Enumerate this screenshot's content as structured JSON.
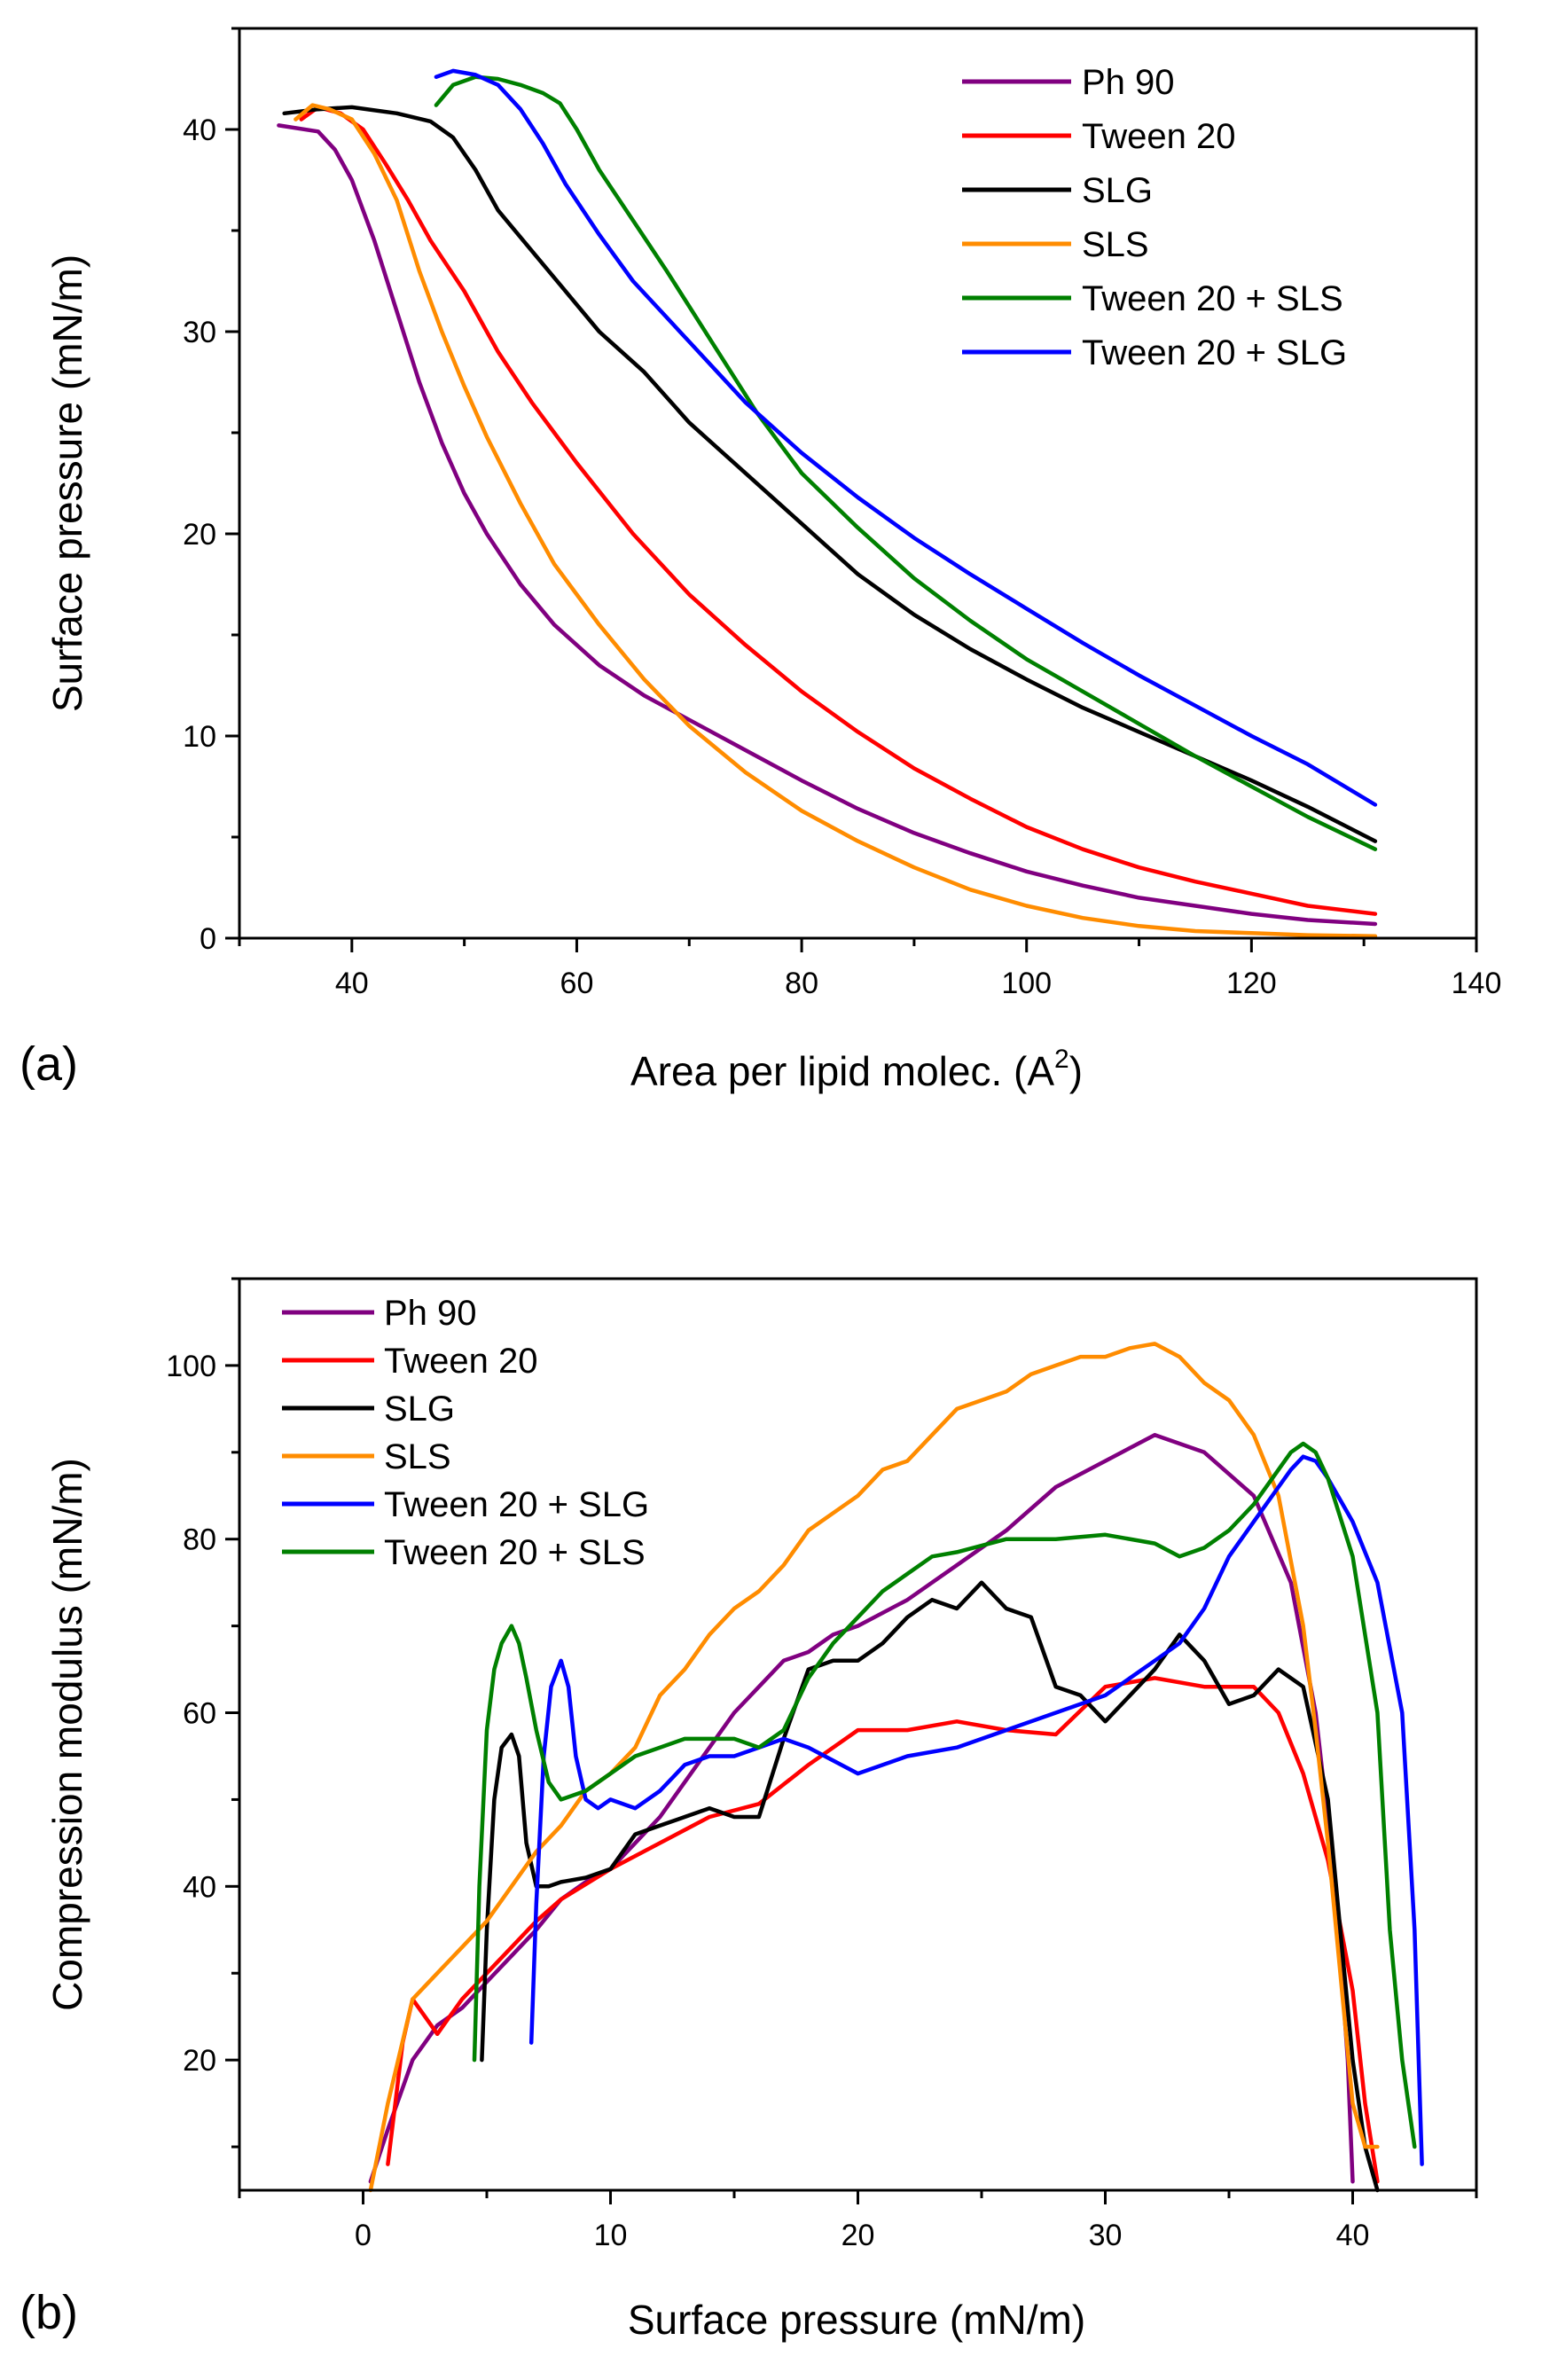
{
  "colors": {
    "ph90": "#800080",
    "tween20": "#ff0000",
    "slg": "#000000",
    "sls": "#ff8c00",
    "tween20_sls": "#008000",
    "tween20_slg": "#0000ff"
  },
  "chart_data": [
    {
      "id": "a",
      "type": "line",
      "panel_label": "(a)",
      "xlabel": "Area per lipid molec. (A",
      "xlabel_sup": "2",
      "xlabel_end": ")",
      "ylabel": "Surface pressure (mN/m)",
      "xlim": [
        30,
        140
      ],
      "ylim": [
        0,
        45
      ],
      "xticks": [
        40,
        60,
        80,
        100,
        120,
        140
      ],
      "yticks": [
        0,
        10,
        20,
        30,
        40
      ],
      "legend_position": "top-right",
      "series": [
        {
          "name": "Ph 90",
          "color_key": "ph90",
          "x": [
            33.5,
            37,
            38.5,
            40,
            42,
            44,
            46,
            48,
            50,
            52,
            55,
            58,
            62,
            66,
            70,
            75,
            80,
            85,
            90,
            95,
            100,
            105,
            110,
            115,
            120,
            125,
            131
          ],
          "y": [
            40.2,
            39.9,
            39,
            37.5,
            34.5,
            31,
            27.5,
            24.5,
            22,
            20,
            17.5,
            15.5,
            13.5,
            12,
            10.8,
            9.3,
            7.8,
            6.4,
            5.2,
            4.2,
            3.3,
            2.6,
            2,
            1.6,
            1.2,
            0.9,
            0.7
          ]
        },
        {
          "name": "Tween 20",
          "color_key": "tween20",
          "x": [
            35.5,
            37,
            39,
            41,
            43,
            45,
            47,
            50,
            53,
            56,
            60,
            65,
            70,
            75,
            80,
            85,
            90,
            95,
            100,
            105,
            110,
            115,
            120,
            125,
            131
          ],
          "y": [
            40.5,
            41.1,
            40.8,
            40,
            38.3,
            36.5,
            34.5,
            32,
            29,
            26.5,
            23.5,
            20,
            17,
            14.5,
            12.2,
            10.2,
            8.4,
            6.9,
            5.5,
            4.4,
            3.5,
            2.8,
            2.2,
            1.6,
            1.2
          ]
        },
        {
          "name": "SLG",
          "color_key": "slg",
          "x": [
            34,
            37,
            40,
            44,
            47,
            49,
            51,
            53,
            56,
            59,
            62,
            66,
            70,
            75,
            80,
            85,
            90,
            95,
            100,
            105,
            110,
            115,
            120,
            125,
            131
          ],
          "y": [
            40.8,
            41,
            41.1,
            40.8,
            40.4,
            39.6,
            38,
            36,
            34,
            32,
            30,
            28,
            25.5,
            23,
            20.5,
            18,
            16,
            14.3,
            12.8,
            11.4,
            10.2,
            9,
            7.8,
            6.5,
            4.8
          ]
        },
        {
          "name": "SLS",
          "color_key": "sls",
          "x": [
            35,
            36.5,
            38,
            40,
            42,
            44,
            46,
            48,
            50,
            52,
            55,
            58,
            62,
            66,
            70,
            75,
            80,
            85,
            90,
            95,
            100,
            105,
            110,
            115,
            120,
            125,
            131
          ],
          "y": [
            40.5,
            41.2,
            41,
            40.5,
            38.8,
            36.5,
            33,
            30,
            27.3,
            24.8,
            21.5,
            18.5,
            15.5,
            12.8,
            10.5,
            8.2,
            6.3,
            4.8,
            3.5,
            2.4,
            1.6,
            1,
            0.6,
            0.35,
            0.25,
            0.15,
            0.1
          ]
        },
        {
          "name": "Tween 20 + SLS",
          "color_key": "tween20_sls",
          "x": [
            47.5,
            49,
            51,
            53,
            55,
            57,
            58.5,
            60,
            62,
            65,
            68,
            72,
            76,
            80,
            85,
            90,
            95,
            100,
            105,
            110,
            115,
            120,
            125,
            131
          ],
          "y": [
            41.2,
            42.2,
            42.6,
            42.5,
            42.2,
            41.8,
            41.3,
            40,
            38,
            35.5,
            33,
            29.5,
            26,
            23,
            20.3,
            17.8,
            15.7,
            13.8,
            12.2,
            10.6,
            9,
            7.5,
            6,
            4.4
          ]
        },
        {
          "name": "Tween 20 + SLG",
          "color_key": "tween20_slg",
          "x": [
            47.5,
            49,
            51,
            53,
            55,
            57,
            59,
            62,
            65,
            70,
            75,
            80,
            85,
            90,
            95,
            100,
            105,
            110,
            115,
            120,
            125,
            131
          ],
          "y": [
            42.6,
            42.9,
            42.7,
            42.2,
            41,
            39.3,
            37.3,
            34.8,
            32.5,
            29.5,
            26.5,
            24,
            21.8,
            19.8,
            18,
            16.3,
            14.6,
            13,
            11.5,
            10,
            8.6,
            6.6
          ]
        }
      ]
    },
    {
      "id": "b",
      "type": "line",
      "panel_label": "(b)",
      "xlabel": "Surface pressure (mN/m)",
      "ylabel": "Compression modulus (mN/m)",
      "xlim": [
        -5,
        45
      ],
      "ylim": [
        5,
        110
      ],
      "xticks": [
        0,
        10,
        20,
        30,
        40
      ],
      "yticks": [
        20,
        40,
        60,
        80,
        100
      ],
      "legend_position": "top-left",
      "series": [
        {
          "name": "Ph 90",
          "color_key": "ph90",
          "x": [
            0.3,
            1,
            1.5,
            2,
            2.5,
            3,
            4,
            5,
            6,
            7,
            8,
            9,
            10,
            11,
            12,
            13,
            14,
            15,
            16,
            17,
            18,
            19,
            20,
            22,
            24,
            26,
            28,
            30,
            32,
            34,
            36,
            37.5,
            38.5,
            39.3,
            39.8,
            40
          ],
          "y": [
            6,
            12,
            16,
            20,
            22,
            24,
            26,
            29,
            32,
            35,
            38.5,
            40.5,
            42,
            45,
            48,
            52,
            56,
            60,
            63,
            66,
            67,
            69,
            70,
            73,
            77,
            81,
            86,
            89,
            92,
            90,
            85,
            75,
            60,
            40,
            20,
            6
          ]
        },
        {
          "name": "Tween 20",
          "color_key": "tween20",
          "x": [
            1,
            1.3,
            1.6,
            2,
            2.5,
            3,
            3.5,
            4,
            5,
            6,
            7,
            8,
            10,
            12,
            14,
            16,
            18,
            20,
            22,
            24,
            26,
            28,
            30,
            32,
            34,
            36,
            37,
            38,
            39,
            40,
            40.5,
            41
          ],
          "y": [
            8,
            15,
            22,
            27,
            25,
            23,
            25,
            27,
            30,
            33,
            36,
            38.5,
            42,
            45,
            48,
            49.5,
            54,
            58,
            58,
            59,
            58,
            57.5,
            63,
            64,
            63,
            63,
            60,
            53,
            43,
            28,
            15,
            6
          ]
        },
        {
          "name": "SLG",
          "color_key": "slg",
          "x": [
            4.8,
            5,
            5.3,
            5.6,
            6,
            6.3,
            6.6,
            7,
            7.5,
            8,
            9,
            10,
            11,
            12,
            13,
            14,
            15,
            16,
            17,
            18,
            19,
            20,
            21,
            22,
            23,
            24,
            25,
            26,
            27,
            28,
            29,
            30,
            31,
            32,
            33,
            34,
            35,
            36,
            37,
            38,
            39,
            39.5,
            40,
            40.5,
            41
          ],
          "y": [
            20,
            35,
            50,
            56,
            57.5,
            55,
            45,
            40,
            40,
            40.5,
            41,
            42,
            46,
            47,
            48,
            49,
            48,
            48,
            57,
            65,
            66,
            66,
            68,
            71,
            73,
            72,
            75,
            72,
            71,
            63,
            62,
            59,
            62,
            65,
            69,
            66,
            61,
            62,
            65,
            63,
            50,
            35,
            20,
            10,
            5
          ]
        },
        {
          "name": "SLS",
          "color_key": "sls",
          "x": [
            0.3,
            1,
            2,
            3,
            4,
            5,
            6,
            7,
            8,
            9,
            10,
            11,
            12,
            13,
            14,
            15,
            16,
            17,
            18,
            19,
            20,
            21,
            22,
            23,
            24,
            25,
            26,
            27,
            28,
            29,
            30,
            31,
            32,
            33,
            34,
            35,
            36,
            37,
            38,
            38.5,
            39,
            39.5,
            40,
            40.5,
            41
          ],
          "y": [
            5,
            15,
            27,
            30,
            33,
            36,
            40,
            44,
            47,
            51,
            53,
            56,
            62,
            65,
            69,
            72,
            74,
            77,
            81,
            83,
            85,
            88,
            89,
            92,
            95,
            96,
            97,
            99,
            100,
            101,
            101,
            102,
            102.5,
            101,
            98,
            96,
            92,
            85,
            70,
            58,
            45,
            30,
            15,
            10,
            10
          ]
        },
        {
          "name": "Tween 20 + SLG",
          "color_key": "tween20_slg",
          "x": [
            6.8,
            7,
            7.3,
            7.6,
            8,
            8.3,
            8.6,
            9,
            9.5,
            10,
            11,
            12,
            13,
            14,
            15,
            16,
            17,
            18,
            20,
            22,
            24,
            26,
            28,
            30,
            31,
            32,
            33,
            34,
            35,
            36,
            37,
            37.5,
            38,
            38.5,
            39,
            40,
            41,
            42,
            42.5,
            42.8
          ],
          "y": [
            22,
            38,
            55,
            63,
            66,
            63,
            55,
            50,
            49,
            50,
            49,
            51,
            54,
            55,
            55,
            56,
            57,
            56,
            53,
            55,
            56,
            58,
            60,
            62,
            64,
            66,
            68,
            72,
            78,
            82,
            86,
            88,
            89.5,
            89,
            87,
            82,
            75,
            60,
            35,
            8
          ]
        },
        {
          "name": "Tween 20 + SLS",
          "color_key": "tween20_sls",
          "x": [
            4.5,
            4.7,
            5,
            5.3,
            5.6,
            6,
            6.3,
            6.6,
            7,
            7.5,
            8,
            9,
            10,
            11,
            12,
            13,
            14,
            15,
            16,
            17,
            18,
            19,
            20,
            21,
            22,
            23,
            24,
            26,
            28,
            30,
            32,
            33,
            34,
            35,
            36,
            37,
            37.5,
            38,
            38.5,
            39,
            40,
            41,
            41.5,
            42,
            42.5
          ],
          "y": [
            20,
            40,
            58,
            65,
            68,
            70,
            68,
            64,
            58,
            52,
            50,
            51,
            53,
            55,
            56,
            57,
            57,
            57,
            56,
            58,
            64,
            68,
            71,
            74,
            76,
            78,
            78.5,
            80,
            80,
            80.5,
            79.5,
            78,
            79,
            81,
            84,
            88,
            90,
            91,
            90,
            87,
            78,
            60,
            35,
            20,
            10
          ]
        }
      ]
    }
  ]
}
